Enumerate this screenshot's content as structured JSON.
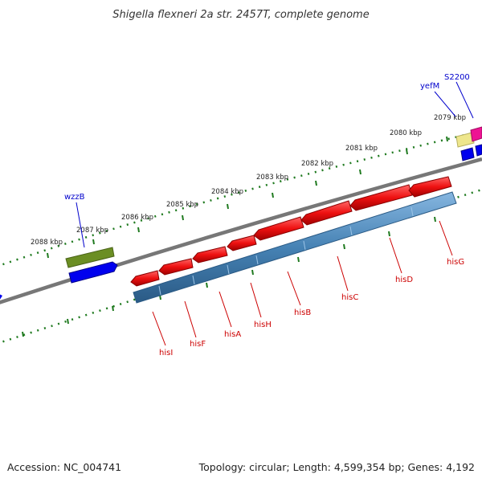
{
  "title": "Shigella flexneri 2a str. 2457T, complete genome",
  "footer": {
    "accession": "Accession: NC_004741",
    "summary": "Topology: circular; Length: 4,599,354 bp; Genes: 4,192"
  },
  "kbp_ticks": [
    "2079 kbp",
    "2080 kbp",
    "2081 kbp",
    "2082 kbp",
    "2083 kbp",
    "2084 kbp",
    "2085 kbp",
    "2086 kbp",
    "2087 kbp",
    "2088 kbp"
  ],
  "genes_forward": [
    {
      "name": "wzzB",
      "color": "#000099"
    },
    {
      "name": "yefM",
      "color": "#000099"
    },
    {
      "name": "S2200",
      "color": "#000099"
    }
  ],
  "genes_reverse": [
    {
      "name": "hisI",
      "color": "#cc0000"
    },
    {
      "name": "hisF",
      "color": "#cc0000"
    },
    {
      "name": "hisA",
      "color": "#cc0000"
    },
    {
      "name": "hisH",
      "color": "#cc0000"
    },
    {
      "name": "hisB",
      "color": "#cc0000"
    },
    {
      "name": "hisC",
      "color": "#cc0000"
    },
    {
      "name": "hisD",
      "color": "#cc0000"
    },
    {
      "name": "hisG",
      "color": "#cc0000"
    }
  ],
  "colors": {
    "backbone": "#777777",
    "ruler_ticks": "#1f7a1f",
    "cds_red": "#ee1111",
    "operon_blue": "#4682b4",
    "gene_blue": "#0000ee",
    "gene_olive": "#6b8e23",
    "gene_pink": "#ee1493",
    "gene_khaki": "#eee68c"
  }
}
